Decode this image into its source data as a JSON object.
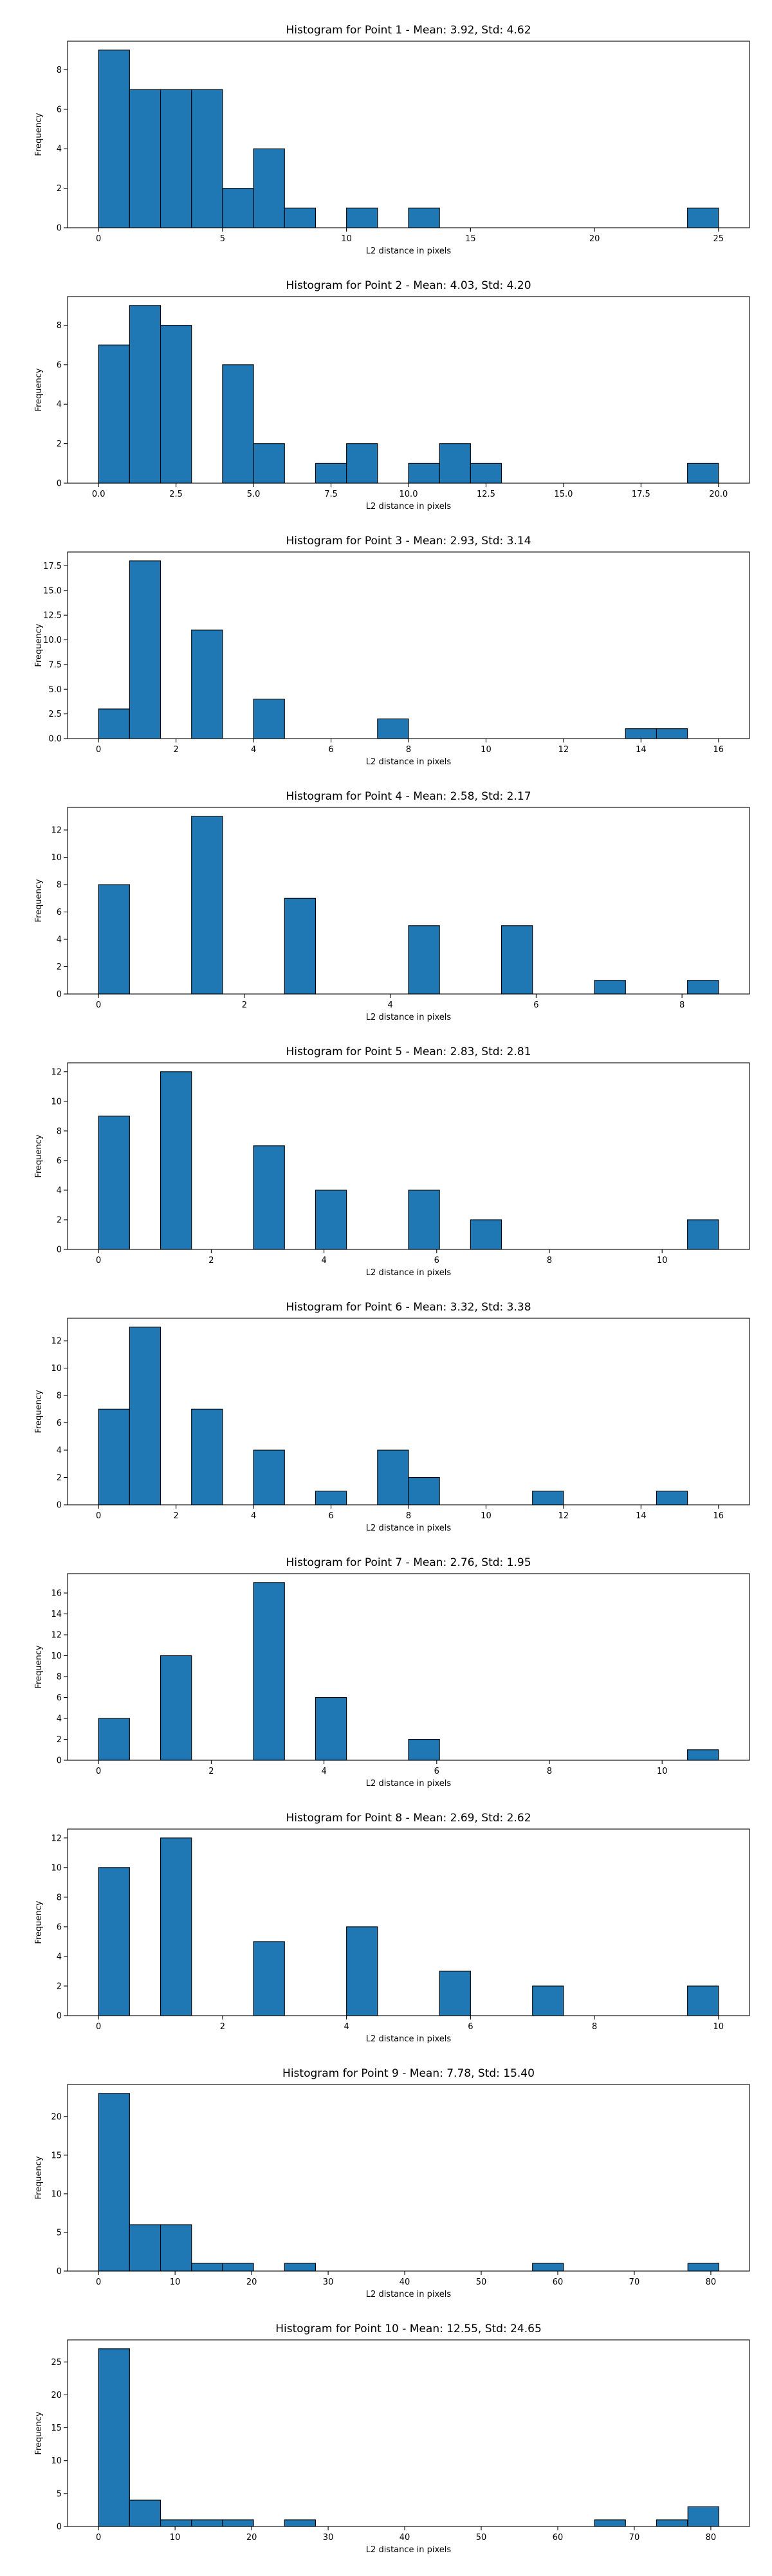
{
  "chart_data": [
    {
      "type": "bar",
      "title": "Histogram for Point 1 - Mean: 3.92, Std: 4.62",
      "xlabel": "L2 distance in pixels",
      "ylabel": "Frequency",
      "xlim": [
        -1.25,
        26.25
      ],
      "ylim": [
        0,
        9.45
      ],
      "xticks": [
        0,
        5,
        10,
        15,
        20,
        25
      ],
      "xtick_labels": [
        "0",
        "5",
        "10",
        "15",
        "20",
        "25"
      ],
      "yticks": [
        0,
        2,
        4,
        6,
        8
      ],
      "ytick_labels": [
        "0",
        "2",
        "4",
        "6",
        "8"
      ],
      "bin_width": 1.25,
      "bins": [
        {
          "x0": 0.0,
          "count": 9
        },
        {
          "x0": 1.25,
          "count": 7
        },
        {
          "x0": 2.5,
          "count": 7
        },
        {
          "x0": 3.75,
          "count": 7
        },
        {
          "x0": 5.0,
          "count": 2
        },
        {
          "x0": 6.25,
          "count": 4
        },
        {
          "x0": 7.5,
          "count": 1
        },
        {
          "x0": 10.0,
          "count": 1
        },
        {
          "x0": 12.5,
          "count": 1
        },
        {
          "x0": 23.75,
          "count": 1
        }
      ]
    },
    {
      "type": "bar",
      "title": "Histogram for Point 2 - Mean: 4.03, Std: 4.20",
      "xlabel": "L2 distance in pixels",
      "ylabel": "Frequency",
      "xlim": [
        -1.0,
        21.0
      ],
      "ylim": [
        0,
        9.45
      ],
      "xticks": [
        0,
        2.5,
        5,
        7.5,
        10,
        12.5,
        15,
        17.5,
        20
      ],
      "xtick_labels": [
        "0.0",
        "2.5",
        "5.0",
        "7.5",
        "10.0",
        "12.5",
        "15.0",
        "17.5",
        "20.0"
      ],
      "yticks": [
        0,
        2,
        4,
        6,
        8
      ],
      "ytick_labels": [
        "0",
        "2",
        "4",
        "6",
        "8"
      ],
      "bin_width": 1.0,
      "bins": [
        {
          "x0": 0,
          "count": 7
        },
        {
          "x0": 1,
          "count": 9
        },
        {
          "x0": 2,
          "count": 8
        },
        {
          "x0": 4,
          "count": 6
        },
        {
          "x0": 5,
          "count": 2
        },
        {
          "x0": 7,
          "count": 1
        },
        {
          "x0": 8,
          "count": 2
        },
        {
          "x0": 10,
          "count": 1
        },
        {
          "x0": 11,
          "count": 2
        },
        {
          "x0": 12,
          "count": 1
        },
        {
          "x0": 19,
          "count": 1
        }
      ]
    },
    {
      "type": "bar",
      "title": "Histogram for Point 3 - Mean: 2.93, Std: 3.14",
      "xlabel": "L2 distance in pixels",
      "ylabel": "Frequency",
      "xlim": [
        -0.8,
        16.8
      ],
      "ylim": [
        0,
        18.9
      ],
      "xticks": [
        0,
        2,
        4,
        6,
        8,
        10,
        12,
        14,
        16
      ],
      "xtick_labels": [
        "0",
        "2",
        "4",
        "6",
        "8",
        "10",
        "12",
        "14",
        "16"
      ],
      "yticks": [
        0,
        2.5,
        5,
        7.5,
        10,
        12.5,
        15,
        17.5
      ],
      "ytick_labels": [
        "0.0",
        "2.5",
        "5.0",
        "7.5",
        "10.0",
        "12.5",
        "15.0",
        "17.5"
      ],
      "bin_width": 0.8,
      "bins": [
        {
          "x0": 0.0,
          "count": 3
        },
        {
          "x0": 0.8,
          "count": 18
        },
        {
          "x0": 2.4,
          "count": 11
        },
        {
          "x0": 4.0,
          "count": 4
        },
        {
          "x0": 7.2,
          "count": 2
        },
        {
          "x0": 13.6,
          "count": 1
        },
        {
          "x0": 14.4,
          "count": 1
        }
      ]
    },
    {
      "type": "bar",
      "title": "Histogram for Point 4 - Mean: 2.58, Std: 2.17",
      "xlabel": "L2 distance in pixels",
      "ylabel": "Frequency",
      "xlim": [
        -0.425,
        8.925
      ],
      "ylim": [
        0,
        13.65
      ],
      "xticks": [
        0,
        2,
        4,
        6,
        8
      ],
      "xtick_labels": [
        "0",
        "2",
        "4",
        "6",
        "8"
      ],
      "yticks": [
        0,
        2,
        4,
        6,
        8,
        10,
        12
      ],
      "ytick_labels": [
        "0",
        "2",
        "4",
        "6",
        "8",
        "10",
        "12"
      ],
      "bin_width": 0.425,
      "bins": [
        {
          "x0": 0.0,
          "count": 8
        },
        {
          "x0": 1.275,
          "count": 13
        },
        {
          "x0": 2.55,
          "count": 7
        },
        {
          "x0": 4.25,
          "count": 5
        },
        {
          "x0": 5.525,
          "count": 5
        },
        {
          "x0": 6.8,
          "count": 1
        },
        {
          "x0": 8.075,
          "count": 1
        }
      ]
    },
    {
      "type": "bar",
      "title": "Histogram for Point 5 - Mean: 2.83, Std: 2.81",
      "xlabel": "L2 distance in pixels",
      "ylabel": "Frequency",
      "xlim": [
        -0.55,
        11.55
      ],
      "ylim": [
        0,
        12.6
      ],
      "xticks": [
        0,
        2,
        4,
        6,
        8,
        10
      ],
      "xtick_labels": [
        "0",
        "2",
        "4",
        "6",
        "8",
        "10"
      ],
      "yticks": [
        0,
        2,
        4,
        6,
        8,
        10,
        12
      ],
      "ytick_labels": [
        "0",
        "2",
        "4",
        "6",
        "8",
        "10",
        "12"
      ],
      "bin_width": 0.55,
      "bins": [
        {
          "x0": 0.0,
          "count": 9
        },
        {
          "x0": 1.1,
          "count": 12
        },
        {
          "x0": 2.75,
          "count": 7
        },
        {
          "x0": 3.85,
          "count": 4
        },
        {
          "x0": 5.5,
          "count": 4
        },
        {
          "x0": 6.6,
          "count": 2
        },
        {
          "x0": 10.45,
          "count": 2
        }
      ]
    },
    {
      "type": "bar",
      "title": "Histogram for Point 6 - Mean: 3.32, Std: 3.38",
      "xlabel": "L2 distance in pixels",
      "ylabel": "Frequency",
      "xlim": [
        -0.8,
        16.8
      ],
      "ylim": [
        0,
        13.65
      ],
      "xticks": [
        0,
        2,
        4,
        6,
        8,
        10,
        12,
        14,
        16
      ],
      "xtick_labels": [
        "0",
        "2",
        "4",
        "6",
        "8",
        "10",
        "12",
        "14",
        "16"
      ],
      "yticks": [
        0,
        2,
        4,
        6,
        8,
        10,
        12
      ],
      "ytick_labels": [
        "0",
        "2",
        "4",
        "6",
        "8",
        "10",
        "12"
      ],
      "bin_width": 0.8,
      "bins": [
        {
          "x0": 0.0,
          "count": 7
        },
        {
          "x0": 0.8,
          "count": 13
        },
        {
          "x0": 2.4,
          "count": 7
        },
        {
          "x0": 4.0,
          "count": 4
        },
        {
          "x0": 5.6,
          "count": 1
        },
        {
          "x0": 7.2,
          "count": 4
        },
        {
          "x0": 8.0,
          "count": 2
        },
        {
          "x0": 11.2,
          "count": 1
        },
        {
          "x0": 14.4,
          "count": 1
        }
      ]
    },
    {
      "type": "bar",
      "title": "Histogram for Point 7 - Mean: 2.76, Std: 1.95",
      "xlabel": "L2 distance in pixels",
      "ylabel": "Frequency",
      "xlim": [
        -0.55,
        11.55
      ],
      "ylim": [
        0,
        17.85
      ],
      "xticks": [
        0,
        2,
        4,
        6,
        8,
        10
      ],
      "xtick_labels": [
        "0",
        "2",
        "4",
        "6",
        "8",
        "10"
      ],
      "yticks": [
        0,
        2,
        4,
        6,
        8,
        10,
        12,
        14,
        16
      ],
      "ytick_labels": [
        "0",
        "2",
        "4",
        "6",
        "8",
        "10",
        "12",
        "14",
        "16"
      ],
      "bin_width": 0.55,
      "bins": [
        {
          "x0": 0.0,
          "count": 4
        },
        {
          "x0": 1.1,
          "count": 10
        },
        {
          "x0": 2.75,
          "count": 17
        },
        {
          "x0": 3.85,
          "count": 6
        },
        {
          "x0": 5.5,
          "count": 2
        },
        {
          "x0": 10.45,
          "count": 1
        }
      ]
    },
    {
      "type": "bar",
      "title": "Histogram for Point 8 - Mean: 2.69, Std: 2.62",
      "xlabel": "L2 distance in pixels",
      "ylabel": "Frequency",
      "xlim": [
        -0.5,
        10.5
      ],
      "ylim": [
        0,
        12.6
      ],
      "xticks": [
        0,
        2,
        4,
        6,
        8,
        10
      ],
      "xtick_labels": [
        "0",
        "2",
        "4",
        "6",
        "8",
        "10"
      ],
      "yticks": [
        0,
        2,
        4,
        6,
        8,
        10,
        12
      ],
      "ytick_labels": [
        "0",
        "2",
        "4",
        "6",
        "8",
        "10",
        "12"
      ],
      "bin_width": 0.5,
      "bins": [
        {
          "x0": 0.0,
          "count": 10
        },
        {
          "x0": 1.0,
          "count": 12
        },
        {
          "x0": 2.5,
          "count": 5
        },
        {
          "x0": 4.0,
          "count": 6
        },
        {
          "x0": 5.5,
          "count": 3
        },
        {
          "x0": 7.0,
          "count": 2
        },
        {
          "x0": 9.5,
          "count": 2
        }
      ]
    },
    {
      "type": "bar",
      "title": "Histogram for Point 9 - Mean: 7.78, Std: 15.40",
      "xlabel": "L2 distance in pixels",
      "ylabel": "Frequency",
      "xlim": [
        -4.05,
        85.05
      ],
      "ylim": [
        0,
        24.15
      ],
      "xticks": [
        0,
        10,
        20,
        30,
        40,
        50,
        60,
        70,
        80
      ],
      "xtick_labels": [
        "0",
        "10",
        "20",
        "30",
        "40",
        "50",
        "60",
        "70",
        "80"
      ],
      "yticks": [
        0,
        5,
        10,
        15,
        20
      ],
      "ytick_labels": [
        "0",
        "5",
        "10",
        "15",
        "20"
      ],
      "bin_width": 4.05,
      "bins": [
        {
          "x0": 0.0,
          "count": 23
        },
        {
          "x0": 4.05,
          "count": 6
        },
        {
          "x0": 8.1,
          "count": 6
        },
        {
          "x0": 12.15,
          "count": 1
        },
        {
          "x0": 16.2,
          "count": 1
        },
        {
          "x0": 24.3,
          "count": 1
        },
        {
          "x0": 56.7,
          "count": 1
        },
        {
          "x0": 77.0,
          "count": 1
        }
      ]
    },
    {
      "type": "bar",
      "title": "Histogram for Point 10 - Mean: 12.55, Std: 24.65",
      "xlabel": "L2 distance in pixels",
      "ylabel": "Frequency",
      "xlim": [
        -4.05,
        85.05
      ],
      "ylim": [
        0,
        28.35
      ],
      "xticks": [
        0,
        10,
        20,
        30,
        40,
        50,
        60,
        70,
        80
      ],
      "xtick_labels": [
        "0",
        "10",
        "20",
        "30",
        "40",
        "50",
        "60",
        "70",
        "80"
      ],
      "yticks": [
        0,
        5,
        10,
        15,
        20,
        25
      ],
      "ytick_labels": [
        "0",
        "5",
        "10",
        "15",
        "20",
        "25"
      ],
      "bin_width": 4.05,
      "bins": [
        {
          "x0": 0.0,
          "count": 27
        },
        {
          "x0": 4.05,
          "count": 4
        },
        {
          "x0": 8.1,
          "count": 1
        },
        {
          "x0": 12.15,
          "count": 1
        },
        {
          "x0": 16.2,
          "count": 1
        },
        {
          "x0": 24.3,
          "count": 1
        },
        {
          "x0": 64.8,
          "count": 1
        },
        {
          "x0": 72.9,
          "count": 1
        },
        {
          "x0": 77.0,
          "count": 3
        }
      ]
    }
  ],
  "style": {
    "bar_color": "#1f77b4",
    "edge_color": "#000000"
  }
}
